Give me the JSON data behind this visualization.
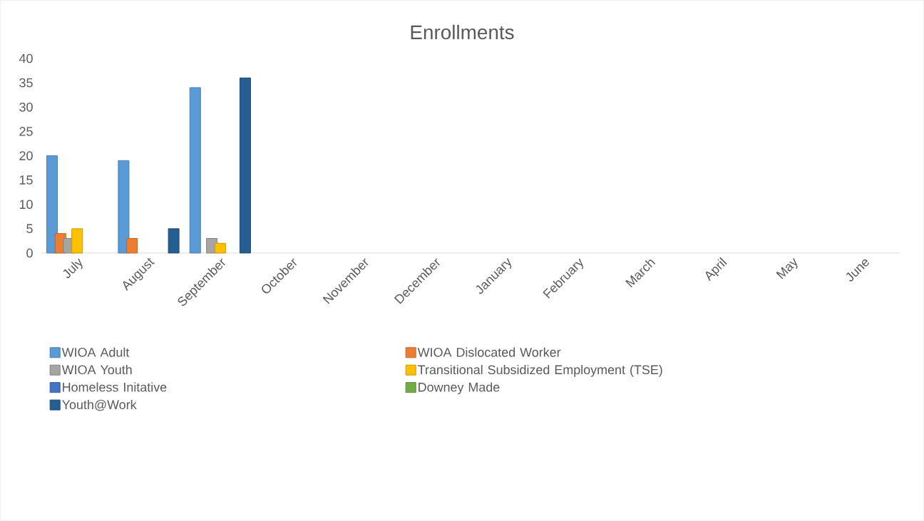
{
  "chart_data": {
    "type": "bar",
    "title": "Enrollments",
    "categories": [
      "July",
      "August",
      "September",
      "October",
      "November",
      "December",
      "January",
      "February",
      "March",
      "April",
      "May",
      "June"
    ],
    "series": [
      {
        "name": "WIOA Adult",
        "color": "#5b9bd5",
        "values": [
          20,
          19,
          34,
          null,
          null,
          null,
          null,
          null,
          null,
          null,
          null,
          null
        ]
      },
      {
        "name": "WIOA Dislocated Worker",
        "color": "#ed7d31",
        "values": [
          4,
          3,
          null,
          null,
          null,
          null,
          null,
          null,
          null,
          null,
          null,
          null
        ]
      },
      {
        "name": "WIOA Youth",
        "color": "#a5a5a5",
        "values": [
          3,
          null,
          3,
          null,
          null,
          null,
          null,
          null,
          null,
          null,
          null,
          null
        ]
      },
      {
        "name": "Transitional Subsidized Employment (TSE)",
        "color": "#ffc000",
        "values": [
          5,
          null,
          2,
          null,
          null,
          null,
          null,
          null,
          null,
          null,
          null,
          null
        ]
      },
      {
        "name": "Homeless Initative",
        "color": "#4472c4",
        "values": [
          null,
          null,
          null,
          null,
          null,
          null,
          null,
          null,
          null,
          null,
          null,
          null
        ]
      },
      {
        "name": "Downey Made",
        "color": "#70ad47",
        "values": [
          null,
          null,
          null,
          null,
          null,
          null,
          null,
          null,
          null,
          null,
          null,
          null
        ]
      },
      {
        "name": "Youth@Work",
        "color": "#255e91",
        "values": [
          null,
          5,
          36,
          null,
          null,
          null,
          null,
          null,
          null,
          null,
          null,
          null
        ]
      }
    ],
    "ylim": [
      0,
      40
    ],
    "yticks": [
      0,
      5,
      10,
      15,
      20,
      25,
      30,
      35,
      40
    ],
    "grid": false,
    "legend": "bottom"
  }
}
